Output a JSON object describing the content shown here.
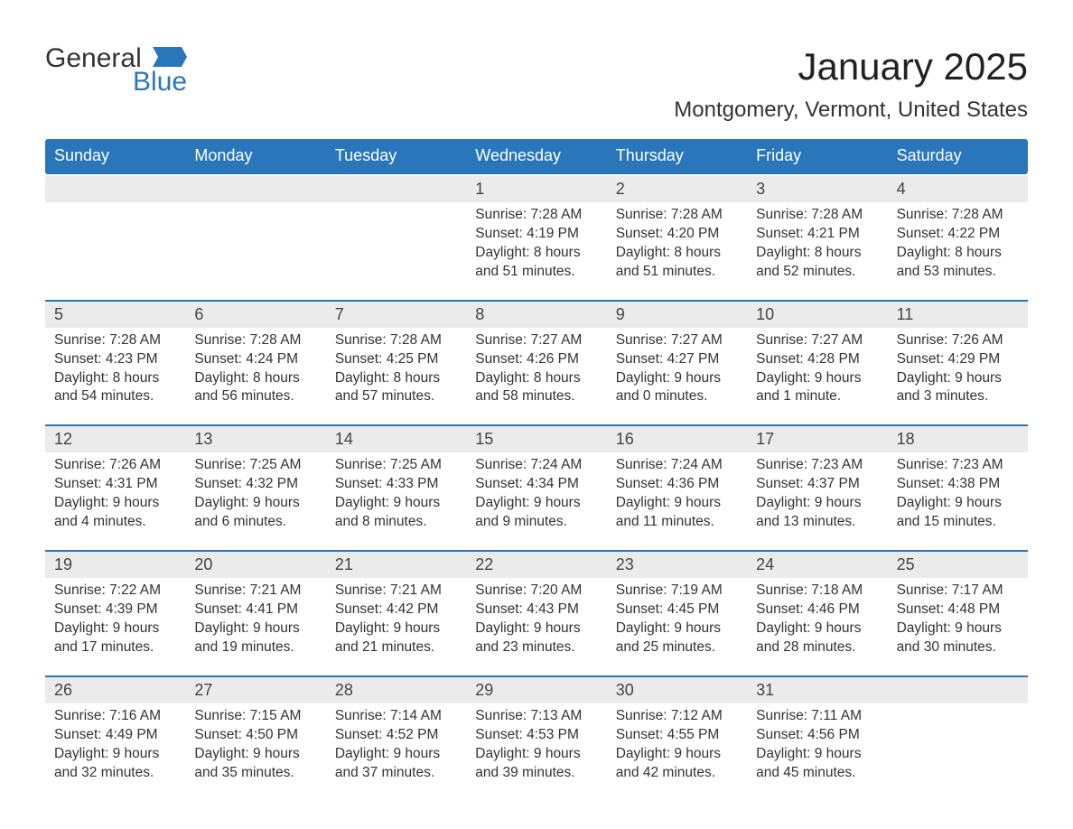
{
  "logo": {
    "primary": "General",
    "secondary": "Blue"
  },
  "title": "January 2025",
  "location": "Montgomery, Vermont, United States",
  "colors": {
    "header_bg": "#2976bb",
    "header_text": "#ffffff",
    "daynum_bg": "#ebebeb",
    "week_border": "#2976bb",
    "body_text": "#333333",
    "page_bg": "#ffffff"
  },
  "weekdays": [
    "Sunday",
    "Monday",
    "Tuesday",
    "Wednesday",
    "Thursday",
    "Friday",
    "Saturday"
  ],
  "weeks": [
    [
      null,
      null,
      null,
      {
        "n": "1",
        "sunrise": "7:28 AM",
        "sunset": "4:19 PM",
        "daylight": "8 hours and 51 minutes."
      },
      {
        "n": "2",
        "sunrise": "7:28 AM",
        "sunset": "4:20 PM",
        "daylight": "8 hours and 51 minutes."
      },
      {
        "n": "3",
        "sunrise": "7:28 AM",
        "sunset": "4:21 PM",
        "daylight": "8 hours and 52 minutes."
      },
      {
        "n": "4",
        "sunrise": "7:28 AM",
        "sunset": "4:22 PM",
        "daylight": "8 hours and 53 minutes."
      }
    ],
    [
      {
        "n": "5",
        "sunrise": "7:28 AM",
        "sunset": "4:23 PM",
        "daylight": "8 hours and 54 minutes."
      },
      {
        "n": "6",
        "sunrise": "7:28 AM",
        "sunset": "4:24 PM",
        "daylight": "8 hours and 56 minutes."
      },
      {
        "n": "7",
        "sunrise": "7:28 AM",
        "sunset": "4:25 PM",
        "daylight": "8 hours and 57 minutes."
      },
      {
        "n": "8",
        "sunrise": "7:27 AM",
        "sunset": "4:26 PM",
        "daylight": "8 hours and 58 minutes."
      },
      {
        "n": "9",
        "sunrise": "7:27 AM",
        "sunset": "4:27 PM",
        "daylight": "9 hours and 0 minutes."
      },
      {
        "n": "10",
        "sunrise": "7:27 AM",
        "sunset": "4:28 PM",
        "daylight": "9 hours and 1 minute."
      },
      {
        "n": "11",
        "sunrise": "7:26 AM",
        "sunset": "4:29 PM",
        "daylight": "9 hours and 3 minutes."
      }
    ],
    [
      {
        "n": "12",
        "sunrise": "7:26 AM",
        "sunset": "4:31 PM",
        "daylight": "9 hours and 4 minutes."
      },
      {
        "n": "13",
        "sunrise": "7:25 AM",
        "sunset": "4:32 PM",
        "daylight": "9 hours and 6 minutes."
      },
      {
        "n": "14",
        "sunrise": "7:25 AM",
        "sunset": "4:33 PM",
        "daylight": "9 hours and 8 minutes."
      },
      {
        "n": "15",
        "sunrise": "7:24 AM",
        "sunset": "4:34 PM",
        "daylight": "9 hours and 9 minutes."
      },
      {
        "n": "16",
        "sunrise": "7:24 AM",
        "sunset": "4:36 PM",
        "daylight": "9 hours and 11 minutes."
      },
      {
        "n": "17",
        "sunrise": "7:23 AM",
        "sunset": "4:37 PM",
        "daylight": "9 hours and 13 minutes."
      },
      {
        "n": "18",
        "sunrise": "7:23 AM",
        "sunset": "4:38 PM",
        "daylight": "9 hours and 15 minutes."
      }
    ],
    [
      {
        "n": "19",
        "sunrise": "7:22 AM",
        "sunset": "4:39 PM",
        "daylight": "9 hours and 17 minutes."
      },
      {
        "n": "20",
        "sunrise": "7:21 AM",
        "sunset": "4:41 PM",
        "daylight": "9 hours and 19 minutes."
      },
      {
        "n": "21",
        "sunrise": "7:21 AM",
        "sunset": "4:42 PM",
        "daylight": "9 hours and 21 minutes."
      },
      {
        "n": "22",
        "sunrise": "7:20 AM",
        "sunset": "4:43 PM",
        "daylight": "9 hours and 23 minutes."
      },
      {
        "n": "23",
        "sunrise": "7:19 AM",
        "sunset": "4:45 PM",
        "daylight": "9 hours and 25 minutes."
      },
      {
        "n": "24",
        "sunrise": "7:18 AM",
        "sunset": "4:46 PM",
        "daylight": "9 hours and 28 minutes."
      },
      {
        "n": "25",
        "sunrise": "7:17 AM",
        "sunset": "4:48 PM",
        "daylight": "9 hours and 30 minutes."
      }
    ],
    [
      {
        "n": "26",
        "sunrise": "7:16 AM",
        "sunset": "4:49 PM",
        "daylight": "9 hours and 32 minutes."
      },
      {
        "n": "27",
        "sunrise": "7:15 AM",
        "sunset": "4:50 PM",
        "daylight": "9 hours and 35 minutes."
      },
      {
        "n": "28",
        "sunrise": "7:14 AM",
        "sunset": "4:52 PM",
        "daylight": "9 hours and 37 minutes."
      },
      {
        "n": "29",
        "sunrise": "7:13 AM",
        "sunset": "4:53 PM",
        "daylight": "9 hours and 39 minutes."
      },
      {
        "n": "30",
        "sunrise": "7:12 AM",
        "sunset": "4:55 PM",
        "daylight": "9 hours and 42 minutes."
      },
      {
        "n": "31",
        "sunrise": "7:11 AM",
        "sunset": "4:56 PM",
        "daylight": "9 hours and 45 minutes."
      },
      null
    ]
  ],
  "labels": {
    "sunrise": "Sunrise: ",
    "sunset": "Sunset: ",
    "daylight": "Daylight: "
  }
}
